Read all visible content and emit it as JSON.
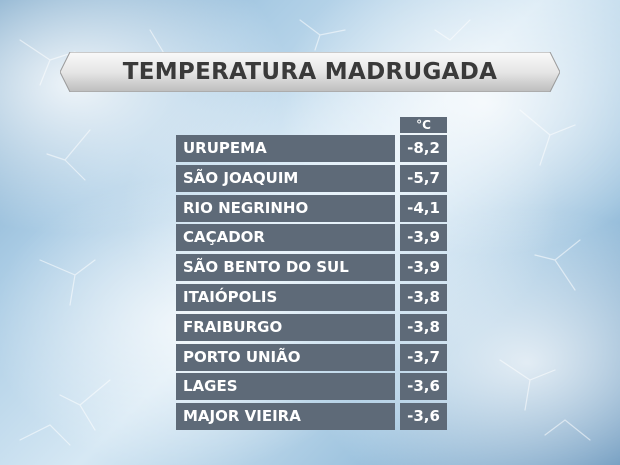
{
  "title": "TEMPERATURA MADRUGADA",
  "unit": "°C",
  "rows": [
    {
      "city": "URUPEMA",
      "temp": "-8,2"
    },
    {
      "city": "SÃO JOAQUIM",
      "temp": "-5,7"
    },
    {
      "city": "RIO NEGRINHO",
      "temp": "-4,1"
    },
    {
      "city": "CAÇADOR",
      "temp": "-3,9"
    },
    {
      "city": "SÃO BENTO DO SUL",
      "temp": "-3,9"
    },
    {
      "city": "ITAIÓPOLIS",
      "temp": "-3,8"
    },
    {
      "city": "FRAIBURGO",
      "temp": "-3,8"
    },
    {
      "city": "PORTO UNIÃO",
      "temp": "-3,7"
    },
    {
      "city": "LAGES",
      "temp": "-3,6"
    },
    {
      "city": "MAJOR VIEIRA",
      "temp": "-3,6"
    }
  ],
  "colors": {
    "cell_bg": "#5e6a78",
    "cell_text": "#ffffff",
    "banner_text": "#3a3a3a"
  }
}
